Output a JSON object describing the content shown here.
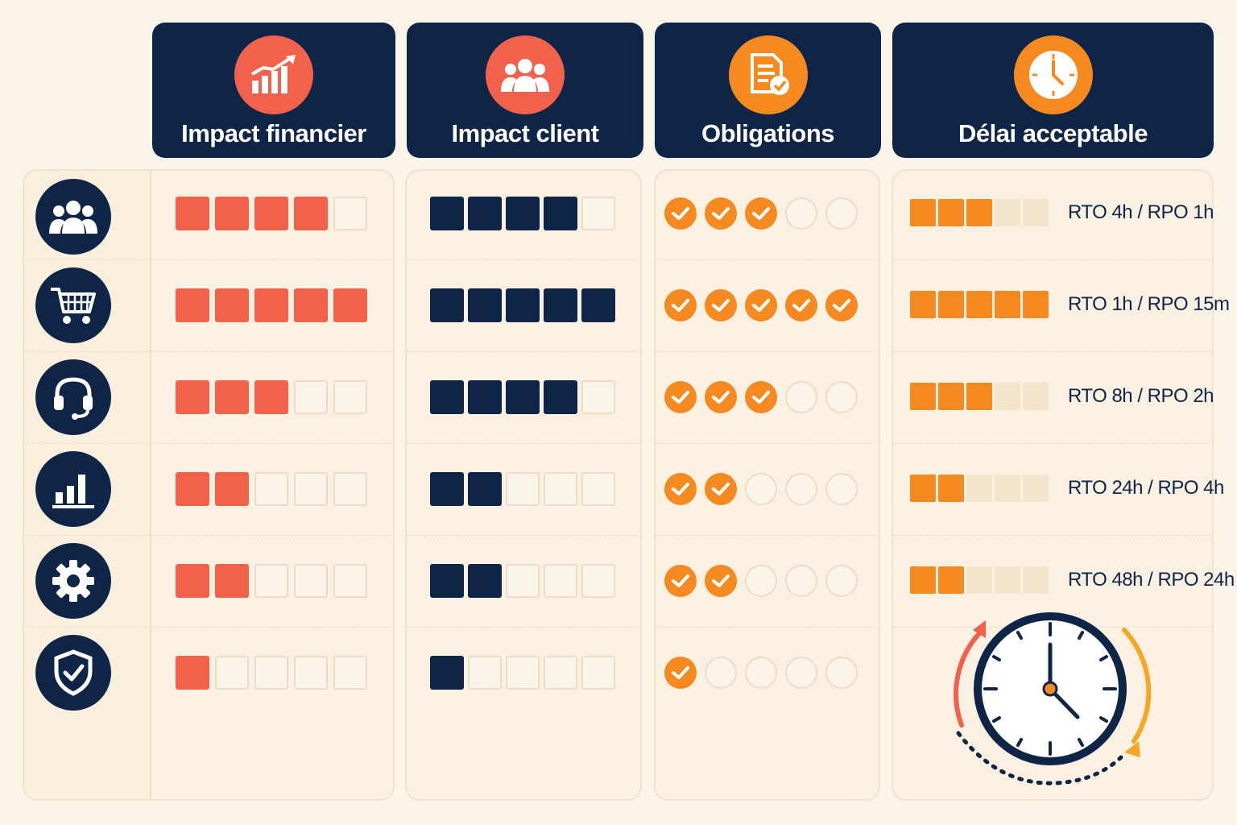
{
  "headers": [
    {
      "title": "Impact financier",
      "icon": "growth-chart-icon",
      "icon_color": "#f2614c"
    },
    {
      "title": "Impact client",
      "icon": "users-group-icon",
      "icon_color": "#f2614c"
    },
    {
      "title": "Obligations",
      "icon": "document-check-icon",
      "icon_color": "#f68a20"
    },
    {
      "title": "Délai acceptable",
      "icon": "clock-icon",
      "icon_color": "#f68a20"
    }
  ],
  "rows": [
    {
      "icon": "users-group-icon",
      "financier": 4,
      "client": 4,
      "obligations": 3,
      "delai": 3,
      "rto": "RTO 4h / RPO 1h"
    },
    {
      "icon": "shopping-cart-icon",
      "financier": 5,
      "client": 5,
      "obligations": 5,
      "delai": 5,
      "rto": "RTO 1h / RPO 15m"
    },
    {
      "icon": "headset-icon",
      "financier": 3,
      "client": 4,
      "obligations": 3,
      "delai": 3,
      "rto": "RTO 8h / RPO 2h"
    },
    {
      "icon": "bar-chart-icon",
      "financier": 2,
      "client": 2,
      "obligations": 2,
      "delai": 2,
      "rto": "RTO 24h / RPO 4h"
    },
    {
      "icon": "gear-icon",
      "financier": 2,
      "client": 2,
      "obligations": 2,
      "delai": 2,
      "rto": "RTO 48h / RPO 24h"
    },
    {
      "icon": "shield-check-icon",
      "financier": 1,
      "client": 1,
      "obligations": 1,
      "delai": null,
      "rto": ""
    }
  ],
  "scale_max": 5,
  "colors": {
    "header_bg": "#0f2548",
    "financier": "#f2614c",
    "client": "#0f2548",
    "obligations": "#f68a20",
    "delai": "#f68a20",
    "empty": "#f5e4cc"
  }
}
